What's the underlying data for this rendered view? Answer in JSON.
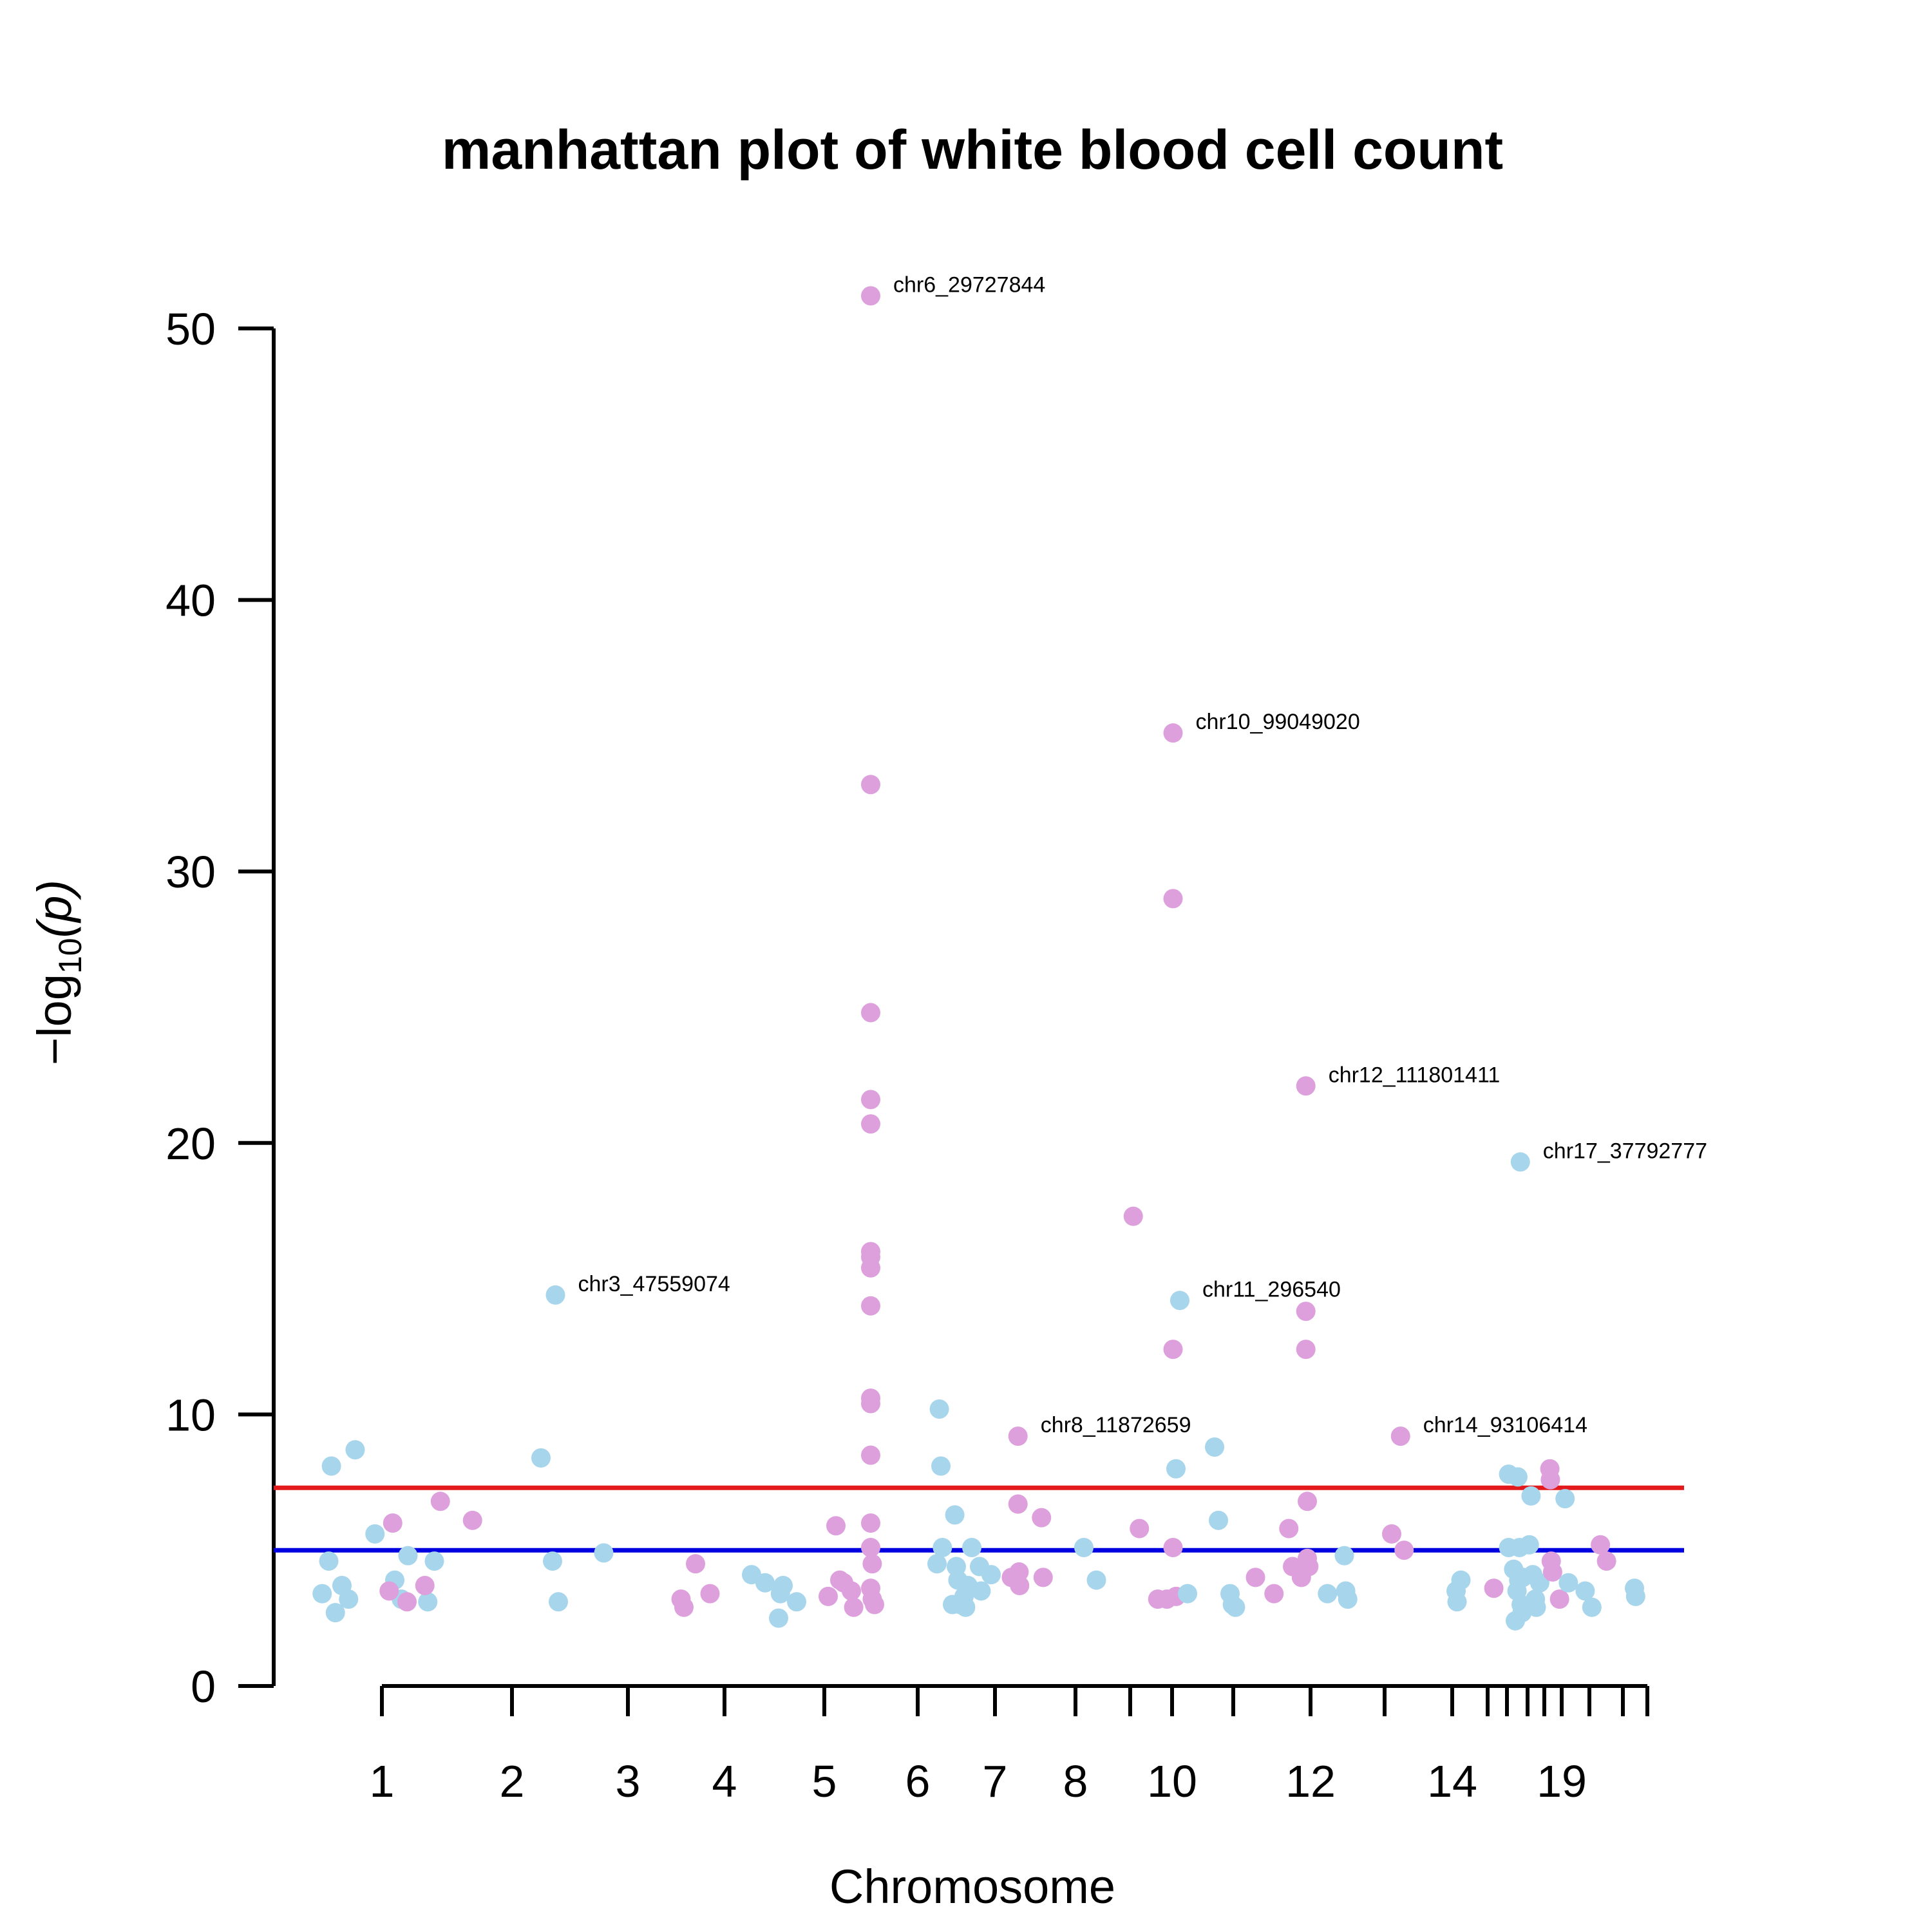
{
  "chart_data": {
    "type": "scatter",
    "title": "manhattan plot of white blood cell count",
    "xlabel": "Chromosome",
    "ylabel_prefix": "−log",
    "ylabel_sub": "10",
    "ylabel_var": "(p)",
    "ylim": [
      0,
      50
    ],
    "y_ticks": [
      0,
      10,
      20,
      30,
      40,
      50
    ],
    "x_tick_labels": [
      "1",
      "2",
      "3",
      "4",
      "5",
      "6",
      "7",
      "8",
      "10",
      "12",
      "14",
      "19"
    ],
    "grid": false,
    "legend": "none",
    "thresholds": [
      {
        "value": 7.3,
        "color": "#e31a1c"
      },
      {
        "value": 5.0,
        "color": "#0000e0"
      }
    ],
    "colors": {
      "odd": "#a6d5ec",
      "even": "#dda0dd"
    },
    "chromosomes": [
      {
        "chr": 1,
        "color": "odd",
        "points": [
          [
            0.05,
            3.4
          ],
          [
            0.1,
            4.6
          ],
          [
            0.15,
            2.7
          ],
          [
            0.2,
            3.7
          ],
          [
            0.25,
            3.2
          ],
          [
            0.3,
            8.7
          ],
          [
            0.12,
            8.1
          ],
          [
            0.45,
            5.6
          ],
          [
            0.6,
            3.9
          ],
          [
            0.65,
            3.2
          ],
          [
            0.7,
            4.8
          ],
          [
            0.85,
            3.1
          ],
          [
            0.9,
            4.6
          ]
        ]
      },
      {
        "chr": 2,
        "color": "even",
        "points": [
          [
            0.05,
            3.5
          ],
          [
            0.08,
            6.0
          ],
          [
            0.2,
            3.1
          ],
          [
            0.35,
            3.7
          ],
          [
            0.48,
            6.8
          ],
          [
            0.75,
            6.1
          ]
        ]
      },
      {
        "chr": 3,
        "color": "odd",
        "points": [
          [
            0.3,
            8.4
          ],
          [
            0.42,
            4.6
          ],
          [
            0.45,
            14.4
          ],
          [
            0.48,
            3.1
          ],
          [
            0.95,
            4.9
          ]
        ]
      },
      {
        "chr": 4,
        "color": "even",
        "points": [
          [
            0.55,
            3.2
          ],
          [
            0.58,
            2.9
          ],
          [
            0.7,
            4.5
          ],
          [
            0.85,
            3.4
          ]
        ]
      },
      {
        "chr": 5,
        "color": "odd",
        "points": [
          [
            0.3,
            4.1
          ],
          [
            0.45,
            3.8
          ],
          [
            0.6,
            2.5
          ],
          [
            0.62,
            3.4
          ],
          [
            0.65,
            3.7
          ],
          [
            0.8,
            3.1
          ]
        ]
      },
      {
        "chr": 6,
        "color": "even",
        "points": [
          [
            0.05,
            3.3
          ],
          [
            0.15,
            5.9
          ],
          [
            0.2,
            3.9
          ],
          [
            0.25,
            3.8
          ],
          [
            0.35,
            3.5
          ],
          [
            0.38,
            2.9
          ],
          [
            0.6,
            51.2
          ],
          [
            0.6,
            33.2
          ],
          [
            0.6,
            24.8
          ],
          [
            0.6,
            21.6
          ],
          [
            0.6,
            20.7
          ],
          [
            0.6,
            16.0
          ],
          [
            0.6,
            15.8
          ],
          [
            0.6,
            15.4
          ],
          [
            0.6,
            14.0
          ],
          [
            0.6,
            10.6
          ],
          [
            0.6,
            10.4
          ],
          [
            0.6,
            8.5
          ],
          [
            0.6,
            6.0
          ],
          [
            0.6,
            5.1
          ],
          [
            0.62,
            4.5
          ],
          [
            0.6,
            3.6
          ],
          [
            0.62,
            3.2
          ],
          [
            0.65,
            3.0
          ]
        ]
      },
      {
        "chr": 7,
        "color": "odd",
        "points": [
          [
            0.25,
            4.5
          ],
          [
            0.28,
            10.2
          ],
          [
            0.3,
            8.1
          ],
          [
            0.32,
            5.1
          ],
          [
            0.45,
            3.0
          ],
          [
            0.48,
            6.3
          ],
          [
            0.5,
            4.4
          ],
          [
            0.52,
            3.9
          ],
          [
            0.55,
            3.0
          ],
          [
            0.6,
            3.3
          ],
          [
            0.62,
            2.9
          ],
          [
            0.65,
            3.7
          ],
          [
            0.7,
            5.1
          ],
          [
            0.8,
            4.4
          ],
          [
            0.82,
            3.5
          ],
          [
            0.95,
            4.1
          ]
        ]
      },
      {
        "chr": 8,
        "color": "even",
        "points": [
          [
            0.3,
            4.0
          ],
          [
            0.42,
            9.2
          ],
          [
            0.42,
            6.7
          ],
          [
            0.44,
            4.2
          ],
          [
            0.45,
            3.7
          ],
          [
            0.85,
            6.2
          ],
          [
            0.88,
            4.0
          ]
        ]
      },
      {
        "chr": 9,
        "color": "odd",
        "points": [
          [
            0.2,
            5.1
          ],
          [
            0.5,
            3.9
          ]
        ]
      },
      {
        "chr": 10,
        "color": "even",
        "points": [
          [
            0.05,
            17.3
          ],
          [
            0.15,
            5.8
          ],
          [
            0.45,
            3.2
          ],
          [
            0.6,
            3.2
          ],
          [
            0.7,
            35.1
          ],
          [
            0.7,
            29.0
          ],
          [
            0.7,
            12.4
          ],
          [
            0.7,
            5.1
          ],
          [
            0.75,
            3.3
          ]
        ]
      },
      {
        "chr": 11,
        "color": "odd",
        "points": [
          [
            0.05,
            8.0
          ],
          [
            0.1,
            14.2
          ],
          [
            0.2,
            3.4
          ],
          [
            0.55,
            8.8
          ],
          [
            0.6,
            6.1
          ],
          [
            0.75,
            3.4
          ],
          [
            0.78,
            3.0
          ],
          [
            0.82,
            2.9
          ]
        ]
      },
      {
        "chr": 12,
        "color": "even",
        "points": [
          [
            0.3,
            4.0
          ],
          [
            0.55,
            3.4
          ],
          [
            0.75,
            5.8
          ],
          [
            0.8,
            4.4
          ],
          [
            0.92,
            4.0
          ],
          [
            0.98,
            22.1
          ],
          [
            0.98,
            13.8
          ],
          [
            0.98,
            12.4
          ],
          [
            1.0,
            6.8
          ],
          [
            1.0,
            4.7
          ],
          [
            1.02,
            4.4
          ]
        ]
      },
      {
        "chr": 13,
        "color": "odd",
        "points": [
          [
            0.25,
            3.4
          ],
          [
            0.5,
            4.8
          ],
          [
            0.52,
            3.5
          ],
          [
            0.55,
            3.2
          ]
        ]
      },
      {
        "chr": 14,
        "color": "even",
        "points": [
          [
            0.2,
            5.6
          ],
          [
            0.45,
            9.2
          ],
          [
            0.55,
            5.0
          ]
        ]
      },
      {
        "chr": 15,
        "color": "odd",
        "points": [
          [
            0.2,
            3.5
          ],
          [
            0.25,
            3.1
          ],
          [
            0.45,
            3.9
          ]
        ]
      },
      {
        "chr": 16,
        "color": "even",
        "points": [
          [
            0.3,
            3.6
          ]
        ]
      },
      {
        "chr": 17,
        "color": "odd",
        "points": [
          [
            0.1,
            7.8
          ],
          [
            0.1,
            5.1
          ],
          [
            0.4,
            4.3
          ],
          [
            0.5,
            2.4
          ],
          [
            0.6,
            3.5
          ],
          [
            0.65,
            7.7
          ],
          [
            0.7,
            3.9
          ],
          [
            0.75,
            5.1
          ],
          [
            0.8,
            19.3
          ],
          [
            0.85,
            3.0
          ],
          [
            0.9,
            2.7
          ],
          [
            0.95,
            4.0
          ]
        ]
      },
      {
        "chr": 18,
        "color": "odd",
        "points": [
          [
            0.1,
            5.2
          ],
          [
            0.2,
            7.0
          ],
          [
            0.3,
            4.1
          ],
          [
            0.45,
            3.2
          ],
          [
            0.5,
            2.9
          ],
          [
            0.7,
            3.8
          ]
        ]
      },
      {
        "chr": 19,
        "color": "even",
        "points": [
          [
            0.2,
            8.0
          ],
          [
            0.22,
            7.6
          ],
          [
            0.25,
            4.6
          ],
          [
            0.3,
            4.2
          ],
          [
            0.55,
            3.2
          ]
        ]
      },
      {
        "chr": 20,
        "color": "odd",
        "points": [
          [
            0.1,
            6.9
          ],
          [
            0.2,
            3.8
          ],
          [
            0.7,
            3.5
          ],
          [
            0.9,
            2.9
          ]
        ]
      },
      {
        "chr": 21,
        "color": "even",
        "points": [
          [
            0.45,
            5.2
          ],
          [
            0.7,
            4.6
          ]
        ]
      },
      {
        "chr": 22,
        "color": "odd",
        "points": [
          [
            0.5,
            3.6
          ],
          [
            0.55,
            3.3
          ]
        ]
      }
    ],
    "annotations": [
      {
        "label": "chr6_29727844",
        "chr": 6,
        "pos": 0.6,
        "y": 51.2
      },
      {
        "label": "chr10_99049020",
        "chr": 10,
        "pos": 0.7,
        "y": 35.1
      },
      {
        "label": "chr12_111801411",
        "chr": 12,
        "pos": 0.98,
        "y": 22.1
      },
      {
        "label": "chr17_37792777",
        "chr": 17,
        "pos": 0.8,
        "y": 19.3
      },
      {
        "label": "chr3_47559074",
        "chr": 3,
        "pos": 0.45,
        "y": 14.4
      },
      {
        "label": "chr11_296540",
        "chr": 11,
        "pos": 0.1,
        "y": 14.2
      },
      {
        "label": "chr8_11872659",
        "chr": 8,
        "pos": 0.42,
        "y": 9.2
      },
      {
        "label": "chr14_93106414",
        "chr": 14,
        "pos": 0.45,
        "y": 9.2
      }
    ]
  }
}
